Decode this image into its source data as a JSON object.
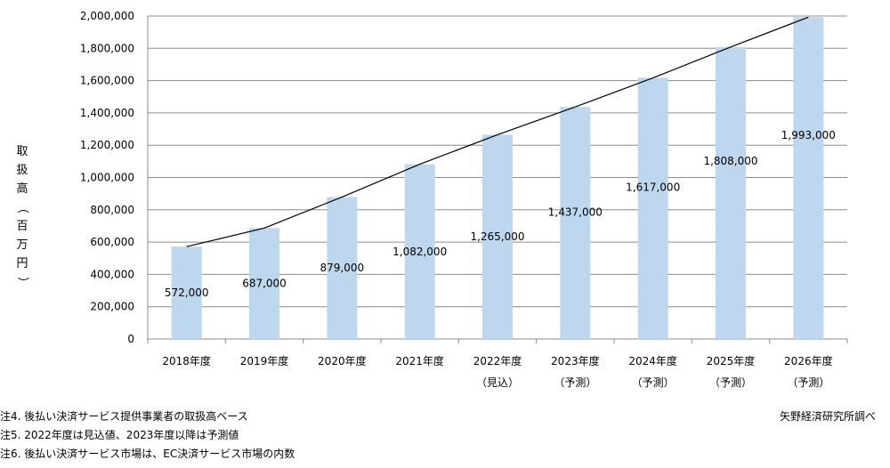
{
  "chart_data": {
    "type": "bar",
    "categories": [
      "2018年度",
      "2019年度",
      "2020年度",
      "2021年度",
      "2022年度",
      "2023年度",
      "2024年度",
      "2025年度",
      "2026年度"
    ],
    "category_sublabels": [
      "",
      "",
      "",
      "",
      "（見込）",
      "（予測）",
      "（予測）",
      "（予測）",
      "（予測）"
    ],
    "values": [
      572000,
      687000,
      879000,
      1082000,
      1265000,
      1437000,
      1617000,
      1808000,
      1993000
    ],
    "data_labels": [
      "572,000",
      "687,000",
      "879,000",
      "1,082,000",
      "1,265,000",
      "1,437,000",
      "1,617,000",
      "1,808,000",
      "1,993,000"
    ],
    "ylabel": "取扱高（百万円）",
    "ylim": [
      0,
      2000000
    ],
    "yticks": [
      0,
      200000,
      400000,
      600000,
      800000,
      1000000,
      1200000,
      1400000,
      1600000,
      1800000,
      2000000
    ],
    "ytick_labels": [
      "0",
      "200,000",
      "400,000",
      "600,000",
      "800,000",
      "1,000,000",
      "1,200,000",
      "1,400,000",
      "1,600,000",
      "1,800,000",
      "2,000,000"
    ],
    "grid": true,
    "trend_line": true,
    "bar_color": "#bdd7ee",
    "line_color": "#000000"
  },
  "notes": [
    "注4. 後払い決済サービス提供事業者の取扱高ベース",
    "注5. 2022年度は見込値、2023年度以降は予測値",
    "注6. 後払い決済サービス市場は、EC決済サービス市場の内数"
  ],
  "source": "矢野経済研究所調べ"
}
